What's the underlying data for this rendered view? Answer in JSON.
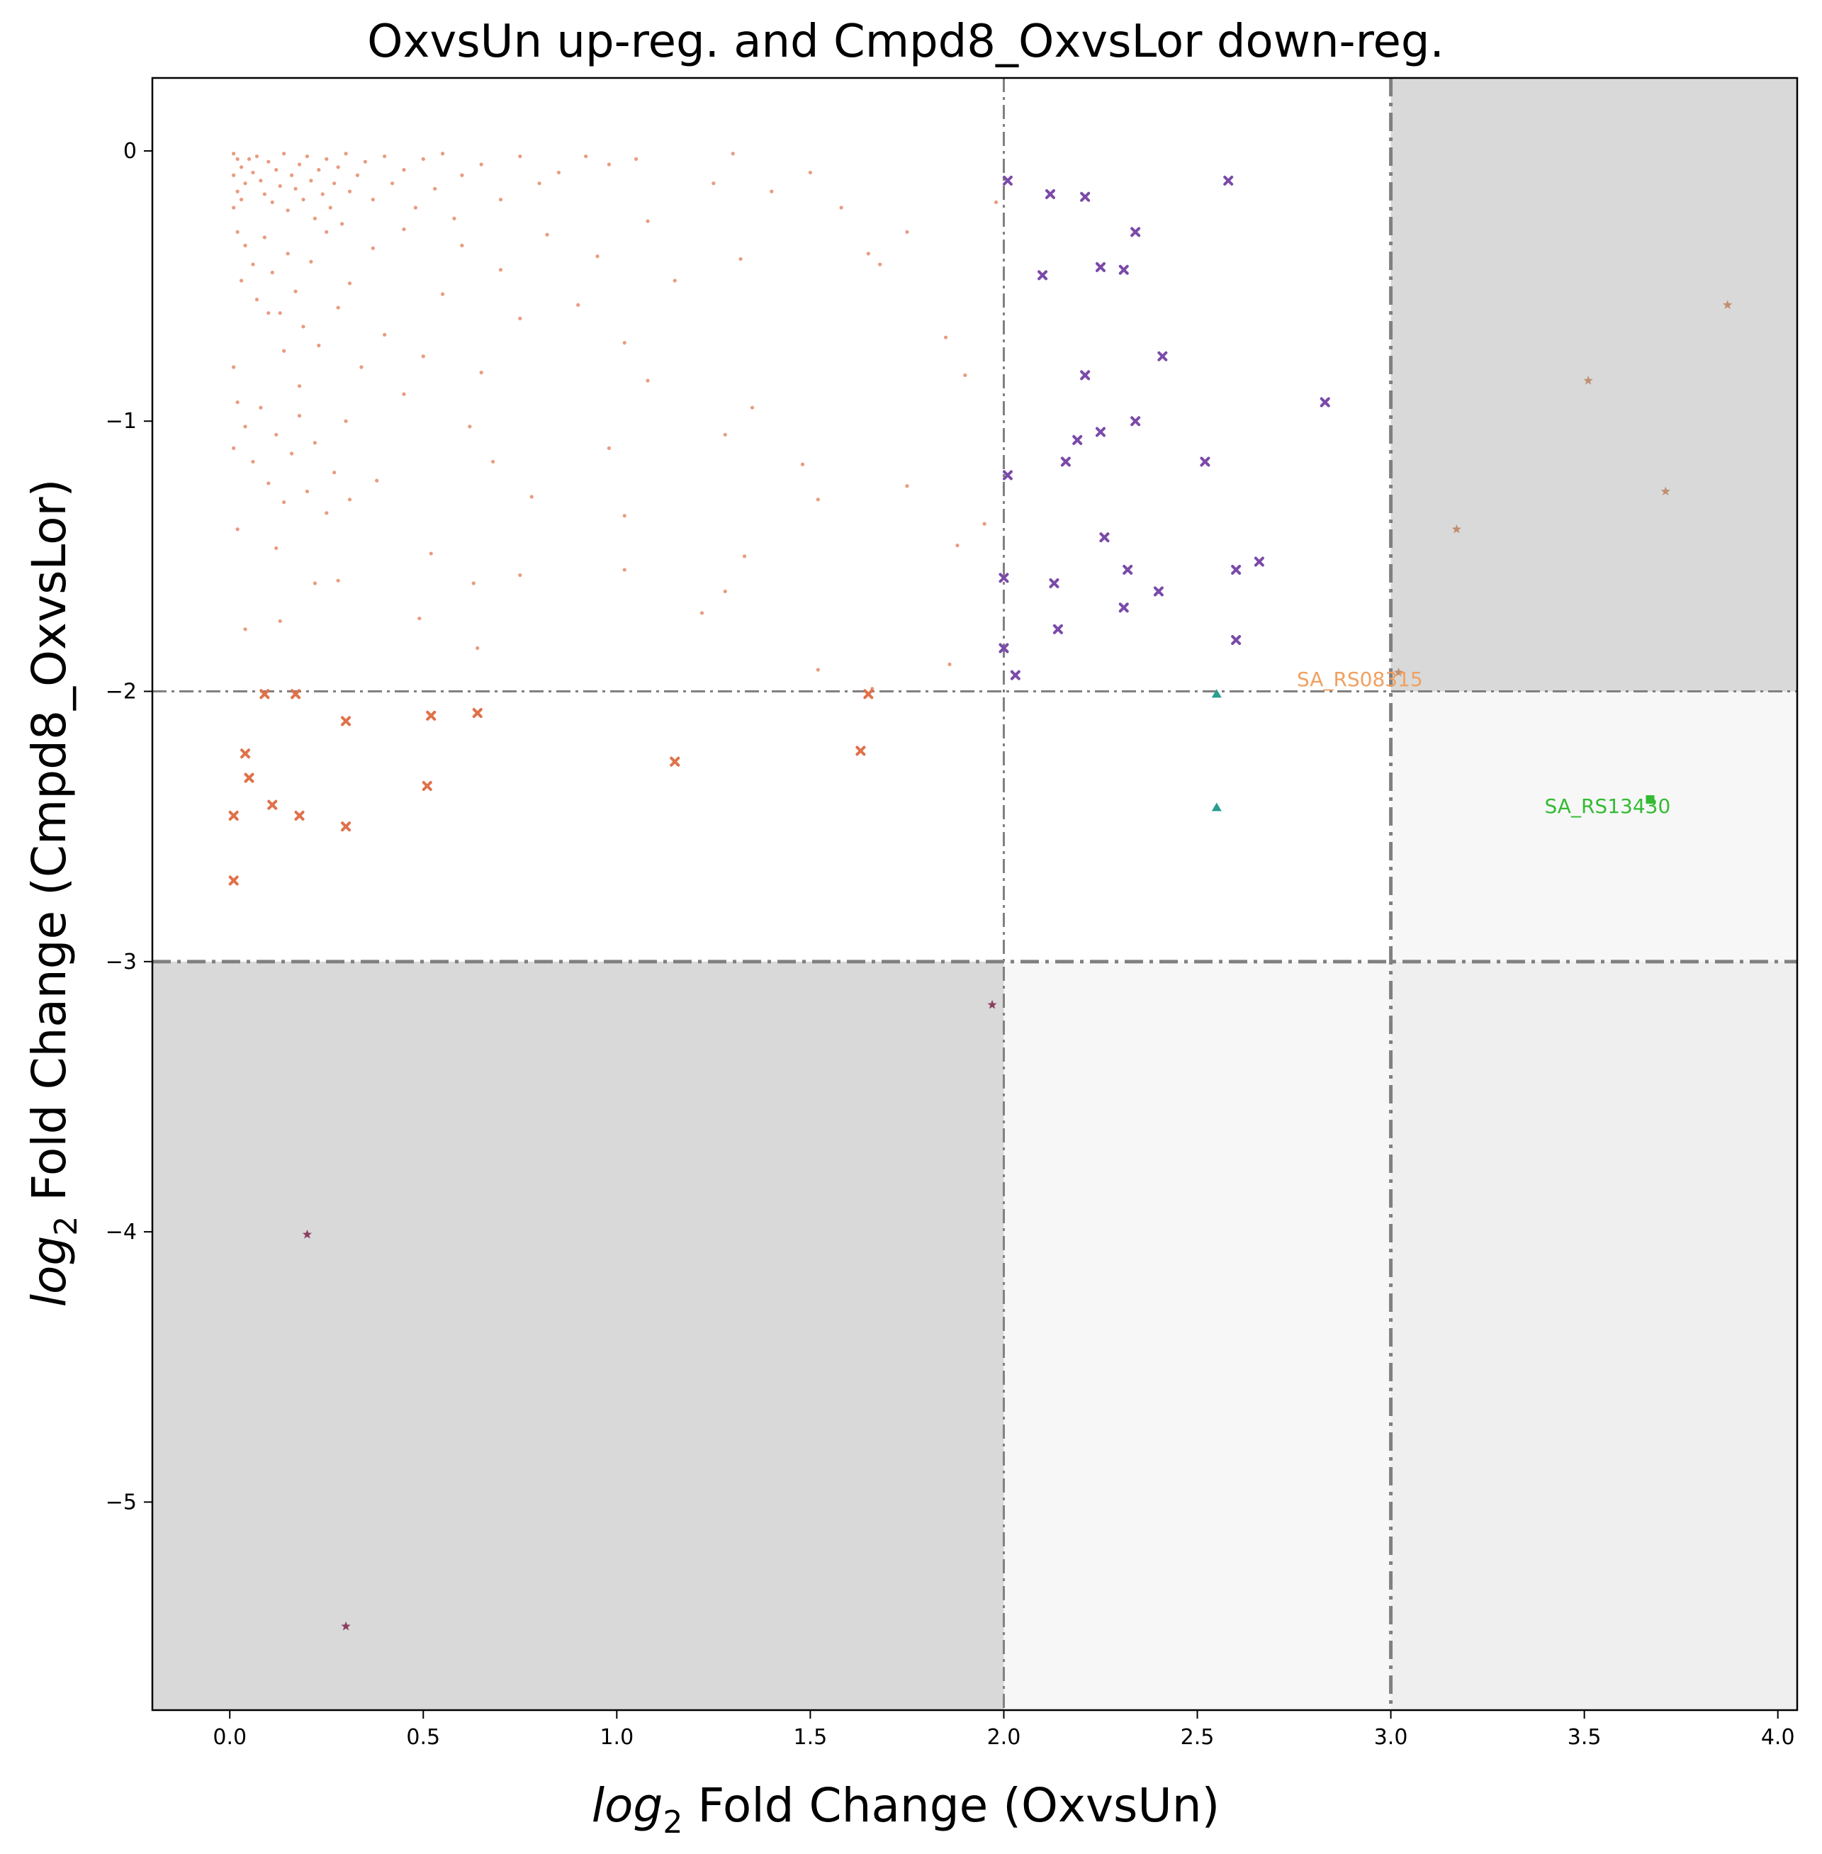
{
  "chart_data": {
    "type": "scatter",
    "title": "OxvsUn up-reg. and Cmpd8_OxvsLor down-reg.",
    "xlabel_italic": "log",
    "xlabel_sub": "2",
    "xlabel_rest": " Fold Change (OxvsUn)",
    "ylabel_italic": "log",
    "ylabel_sub": "2",
    "ylabel_rest": " Fold Change (Cmpd8_OxvsLor)",
    "xlim": [
      -0.2,
      4.05
    ],
    "ylim": [
      -5.77,
      0.27
    ],
    "xticks": [
      0.0,
      0.5,
      1.0,
      1.5,
      2.0,
      2.5,
      3.0,
      3.5,
      4.0
    ],
    "xtick_labels": [
      "0.0",
      "0.5",
      "1.0",
      "1.5",
      "2.0",
      "2.5",
      "3.0",
      "3.5",
      "4.0"
    ],
    "yticks": [
      0,
      -1,
      -2,
      -3,
      -4,
      -5
    ],
    "ytick_labels": [
      "0",
      "−1",
      "−2",
      "−3",
      "−4",
      "−5"
    ],
    "grid": false,
    "thresholds": {
      "x": [
        {
          "value": 2,
          "style": "thin"
        },
        {
          "value": 3,
          "style": "thick"
        }
      ],
      "y": [
        {
          "value": -2,
          "style": "thin"
        },
        {
          "value": -3,
          "style": "thick"
        }
      ]
    },
    "shaded_regions": [
      {
        "x": [
          3,
          4.05
        ],
        "y": [
          -2,
          0.27
        ],
        "color": "#d9d9d9"
      },
      {
        "x": [
          3,
          4.05
        ],
        "y": [
          -3,
          -2
        ],
        "color": "#f7f7f7"
      },
      {
        "x": [
          3,
          4.05
        ],
        "y": [
          -5.77,
          -3
        ],
        "color": "#efefef"
      },
      {
        "x": [
          2,
          3
        ],
        "y": [
          -5.77,
          -3
        ],
        "color": "#f7f7f7"
      },
      {
        "x": [
          -0.2,
          2
        ],
        "y": [
          -5.77,
          -3
        ],
        "color": "#d9d9d9"
      }
    ],
    "series": [
      {
        "marker": "dot",
        "color": "#e0714a",
        "points": [
          [
            0.01,
            -0.01
          ],
          [
            0.02,
            -0.03
          ],
          [
            0.03,
            -0.06
          ],
          [
            0.01,
            -0.09
          ],
          [
            0.04,
            -0.12
          ],
          [
            0.02,
            -0.15
          ],
          [
            0.03,
            -0.18
          ],
          [
            0.01,
            -0.21
          ],
          [
            0.05,
            -0.03
          ],
          [
            0.06,
            -0.08
          ],
          [
            0.07,
            -0.02
          ],
          [
            0.08,
            -0.11
          ],
          [
            0.09,
            -0.16
          ],
          [
            0.1,
            -0.04
          ],
          [
            0.11,
            -0.19
          ],
          [
            0.12,
            -0.07
          ],
          [
            0.13,
            -0.13
          ],
          [
            0.14,
            -0.01
          ],
          [
            0.15,
            -0.22
          ],
          [
            0.16,
            -0.09
          ],
          [
            0.17,
            -0.14
          ],
          [
            0.18,
            -0.05
          ],
          [
            0.19,
            -0.18
          ],
          [
            0.2,
            -0.02
          ],
          [
            0.21,
            -0.11
          ],
          [
            0.22,
            -0.25
          ],
          [
            0.23,
            -0.07
          ],
          [
            0.24,
            -0.16
          ],
          [
            0.25,
            -0.03
          ],
          [
            0.26,
            -0.21
          ],
          [
            0.27,
            -0.12
          ],
          [
            0.28,
            -0.06
          ],
          [
            0.29,
            -0.27
          ],
          [
            0.3,
            -0.01
          ],
          [
            0.31,
            -0.15
          ],
          [
            0.33,
            -0.09
          ],
          [
            0.35,
            -0.04
          ],
          [
            0.37,
            -0.18
          ],
          [
            0.4,
            -0.02
          ],
          [
            0.42,
            -0.12
          ],
          [
            0.45,
            -0.07
          ],
          [
            0.48,
            -0.21
          ],
          [
            0.5,
            -0.03
          ],
          [
            0.53,
            -0.14
          ],
          [
            0.55,
            -0.01
          ],
          [
            0.58,
            -0.25
          ],
          [
            0.6,
            -0.09
          ],
          [
            0.65,
            -0.05
          ],
          [
            0.7,
            -0.18
          ],
          [
            0.75,
            -0.02
          ],
          [
            0.8,
            -0.12
          ],
          [
            0.85,
            -0.08
          ],
          [
            0.92,
            -0.02
          ],
          [
            0.98,
            -0.05
          ],
          [
            1.05,
            -0.03
          ],
          [
            1.3,
            -0.01
          ],
          [
            0.02,
            -0.3
          ],
          [
            0.04,
            -0.35
          ],
          [
            0.06,
            -0.42
          ],
          [
            0.03,
            -0.48
          ],
          [
            0.07,
            -0.55
          ],
          [
            0.09,
            -0.32
          ],
          [
            0.11,
            -0.45
          ],
          [
            0.13,
            -0.6
          ],
          [
            0.15,
            -0.38
          ],
          [
            0.17,
            -0.52
          ],
          [
            0.19,
            -0.65
          ],
          [
            0.21,
            -0.41
          ],
          [
            0.23,
            -0.72
          ],
          [
            0.25,
            -0.3
          ],
          [
            0.28,
            -0.58
          ],
          [
            0.31,
            -0.49
          ],
          [
            0.34,
            -0.8
          ],
          [
            0.37,
            -0.36
          ],
          [
            0.4,
            -0.68
          ],
          [
            0.45,
            -0.29
          ],
          [
            0.5,
            -0.76
          ],
          [
            0.55,
            -0.53
          ],
          [
            0.6,
            -0.35
          ],
          [
            0.65,
            -0.82
          ],
          [
            0.7,
            -0.44
          ],
          [
            0.75,
            -0.62
          ],
          [
            0.82,
            -0.31
          ],
          [
            0.9,
            -0.57
          ],
          [
            0.95,
            -0.39
          ],
          [
            1.02,
            -0.71
          ],
          [
            1.08,
            -0.26
          ],
          [
            1.15,
            -0.48
          ],
          [
            1.25,
            -0.12
          ],
          [
            1.32,
            -0.4
          ],
          [
            1.4,
            -0.15
          ],
          [
            1.5,
            -0.08
          ],
          [
            1.58,
            -0.21
          ],
          [
            1.65,
            -0.38
          ],
          [
            1.68,
            -0.42
          ],
          [
            1.75,
            -0.3
          ],
          [
            1.85,
            -0.69
          ],
          [
            1.9,
            -0.83
          ],
          [
            1.98,
            -0.19
          ],
          [
            0.01,
            -0.8
          ],
          [
            0.02,
            -0.93
          ],
          [
            0.01,
            -1.1
          ],
          [
            0.04,
            -1.02
          ],
          [
            0.06,
            -1.15
          ],
          [
            0.08,
            -0.95
          ],
          [
            0.1,
            -1.23
          ],
          [
            0.12,
            -1.05
          ],
          [
            0.14,
            -1.3
          ],
          [
            0.16,
            -1.12
          ],
          [
            0.18,
            -0.98
          ],
          [
            0.2,
            -1.26
          ],
          [
            0.22,
            -1.08
          ],
          [
            0.25,
            -1.34
          ],
          [
            0.3,
            -1.0
          ],
          [
            0.38,
            -1.22
          ],
          [
            0.45,
            -0.9
          ],
          [
            0.62,
            -1.02
          ],
          [
            0.68,
            -1.15
          ],
          [
            0.78,
            -1.28
          ],
          [
            0.98,
            -1.1
          ],
          [
            1.02,
            -1.35
          ],
          [
            1.08,
            -0.85
          ],
          [
            1.28,
            -1.05
          ],
          [
            1.35,
            -0.95
          ],
          [
            1.48,
            -1.16
          ],
          [
            1.52,
            -1.29
          ],
          [
            1.75,
            -1.24
          ],
          [
            1.88,
            -1.46
          ],
          [
            1.95,
            -1.38
          ],
          [
            0.02,
            -1.4
          ],
          [
            0.12,
            -1.47
          ],
          [
            0.22,
            -1.6
          ],
          [
            0.28,
            -1.59
          ],
          [
            0.52,
            -1.49
          ],
          [
            0.63,
            -1.6
          ],
          [
            0.75,
            -1.57
          ],
          [
            1.02,
            -1.55
          ],
          [
            1.22,
            -1.71
          ],
          [
            1.28,
            -1.63
          ],
          [
            1.33,
            -1.5
          ],
          [
            1.52,
            -1.92
          ],
          [
            1.86,
            -1.9
          ],
          [
            0.04,
            -1.77
          ],
          [
            0.13,
            -1.74
          ],
          [
            0.49,
            -1.73
          ],
          [
            0.64,
            -1.84
          ],
          [
            1.66,
            -1.99
          ],
          [
            0.27,
            -1.19
          ],
          [
            0.31,
            -1.29
          ],
          [
            0.1,
            -0.6
          ],
          [
            0.14,
            -0.74
          ],
          [
            0.18,
            -0.87
          ]
        ]
      },
      {
        "marker": "x",
        "color": "#e0714a",
        "points": [
          [
            0.09,
            -2.01
          ],
          [
            0.17,
            -2.01
          ],
          [
            0.3,
            -2.11
          ],
          [
            0.52,
            -2.09
          ],
          [
            0.64,
            -2.08
          ],
          [
            1.65,
            -2.01
          ],
          [
            0.04,
            -2.23
          ],
          [
            0.05,
            -2.32
          ],
          [
            0.01,
            -2.46
          ],
          [
            0.11,
            -2.42
          ],
          [
            0.18,
            -2.46
          ],
          [
            0.3,
            -2.5
          ],
          [
            0.51,
            -2.35
          ],
          [
            1.15,
            -2.26
          ],
          [
            1.63,
            -2.22
          ],
          [
            0.01,
            -2.7
          ]
        ]
      },
      {
        "marker": "x",
        "color": "#7a4aa8",
        "points": [
          [
            2.01,
            -0.11
          ],
          [
            2.12,
            -0.16
          ],
          [
            2.21,
            -0.17
          ],
          [
            2.58,
            -0.11
          ],
          [
            2.34,
            -0.3
          ],
          [
            2.1,
            -0.46
          ],
          [
            2.25,
            -0.43
          ],
          [
            2.31,
            -0.44
          ],
          [
            2.41,
            -0.76
          ],
          [
            2.21,
            -0.83
          ],
          [
            2.83,
            -0.93
          ],
          [
            2.34,
            -1.0
          ],
          [
            2.25,
            -1.04
          ],
          [
            2.19,
            -1.07
          ],
          [
            2.16,
            -1.15
          ],
          [
            2.52,
            -1.15
          ],
          [
            2.01,
            -1.2
          ],
          [
            2.26,
            -1.43
          ],
          [
            2.66,
            -1.52
          ],
          [
            2.32,
            -1.55
          ],
          [
            2.6,
            -1.55
          ],
          [
            2.13,
            -1.6
          ],
          [
            2.0,
            -1.58
          ],
          [
            2.4,
            -1.63
          ],
          [
            2.31,
            -1.69
          ],
          [
            2.14,
            -1.77
          ],
          [
            2.6,
            -1.81
          ],
          [
            2.0,
            -1.84
          ],
          [
            2.03,
            -1.94
          ]
        ]
      },
      {
        "marker": "triangle",
        "color": "#2a9d8f",
        "points": [
          [
            2.55,
            -2.01
          ],
          [
            2.55,
            -2.43
          ]
        ]
      },
      {
        "marker": "star",
        "color": "#c09070",
        "points": [
          [
            3.87,
            -0.57
          ],
          [
            3.51,
            -0.85
          ],
          [
            3.71,
            -1.26
          ],
          [
            3.17,
            -1.4
          ],
          [
            3.02,
            -1.93
          ]
        ]
      },
      {
        "marker": "square",
        "color": "#33bb33",
        "points": [
          [
            3.67,
            -2.4
          ]
        ]
      },
      {
        "marker": "star",
        "color": "#8a4060",
        "points": [
          [
            1.97,
            -3.16
          ],
          [
            0.2,
            -4.01
          ],
          [
            0.3,
            -5.46
          ]
        ]
      }
    ],
    "annotations": [
      {
        "text": "SA_RS08315",
        "x": 2.92,
        "y": -1.98,
        "color": "#f0a060"
      },
      {
        "text": "SA_RS13430",
        "x": 3.56,
        "y": -2.45,
        "color": "#33bb33"
      }
    ]
  }
}
